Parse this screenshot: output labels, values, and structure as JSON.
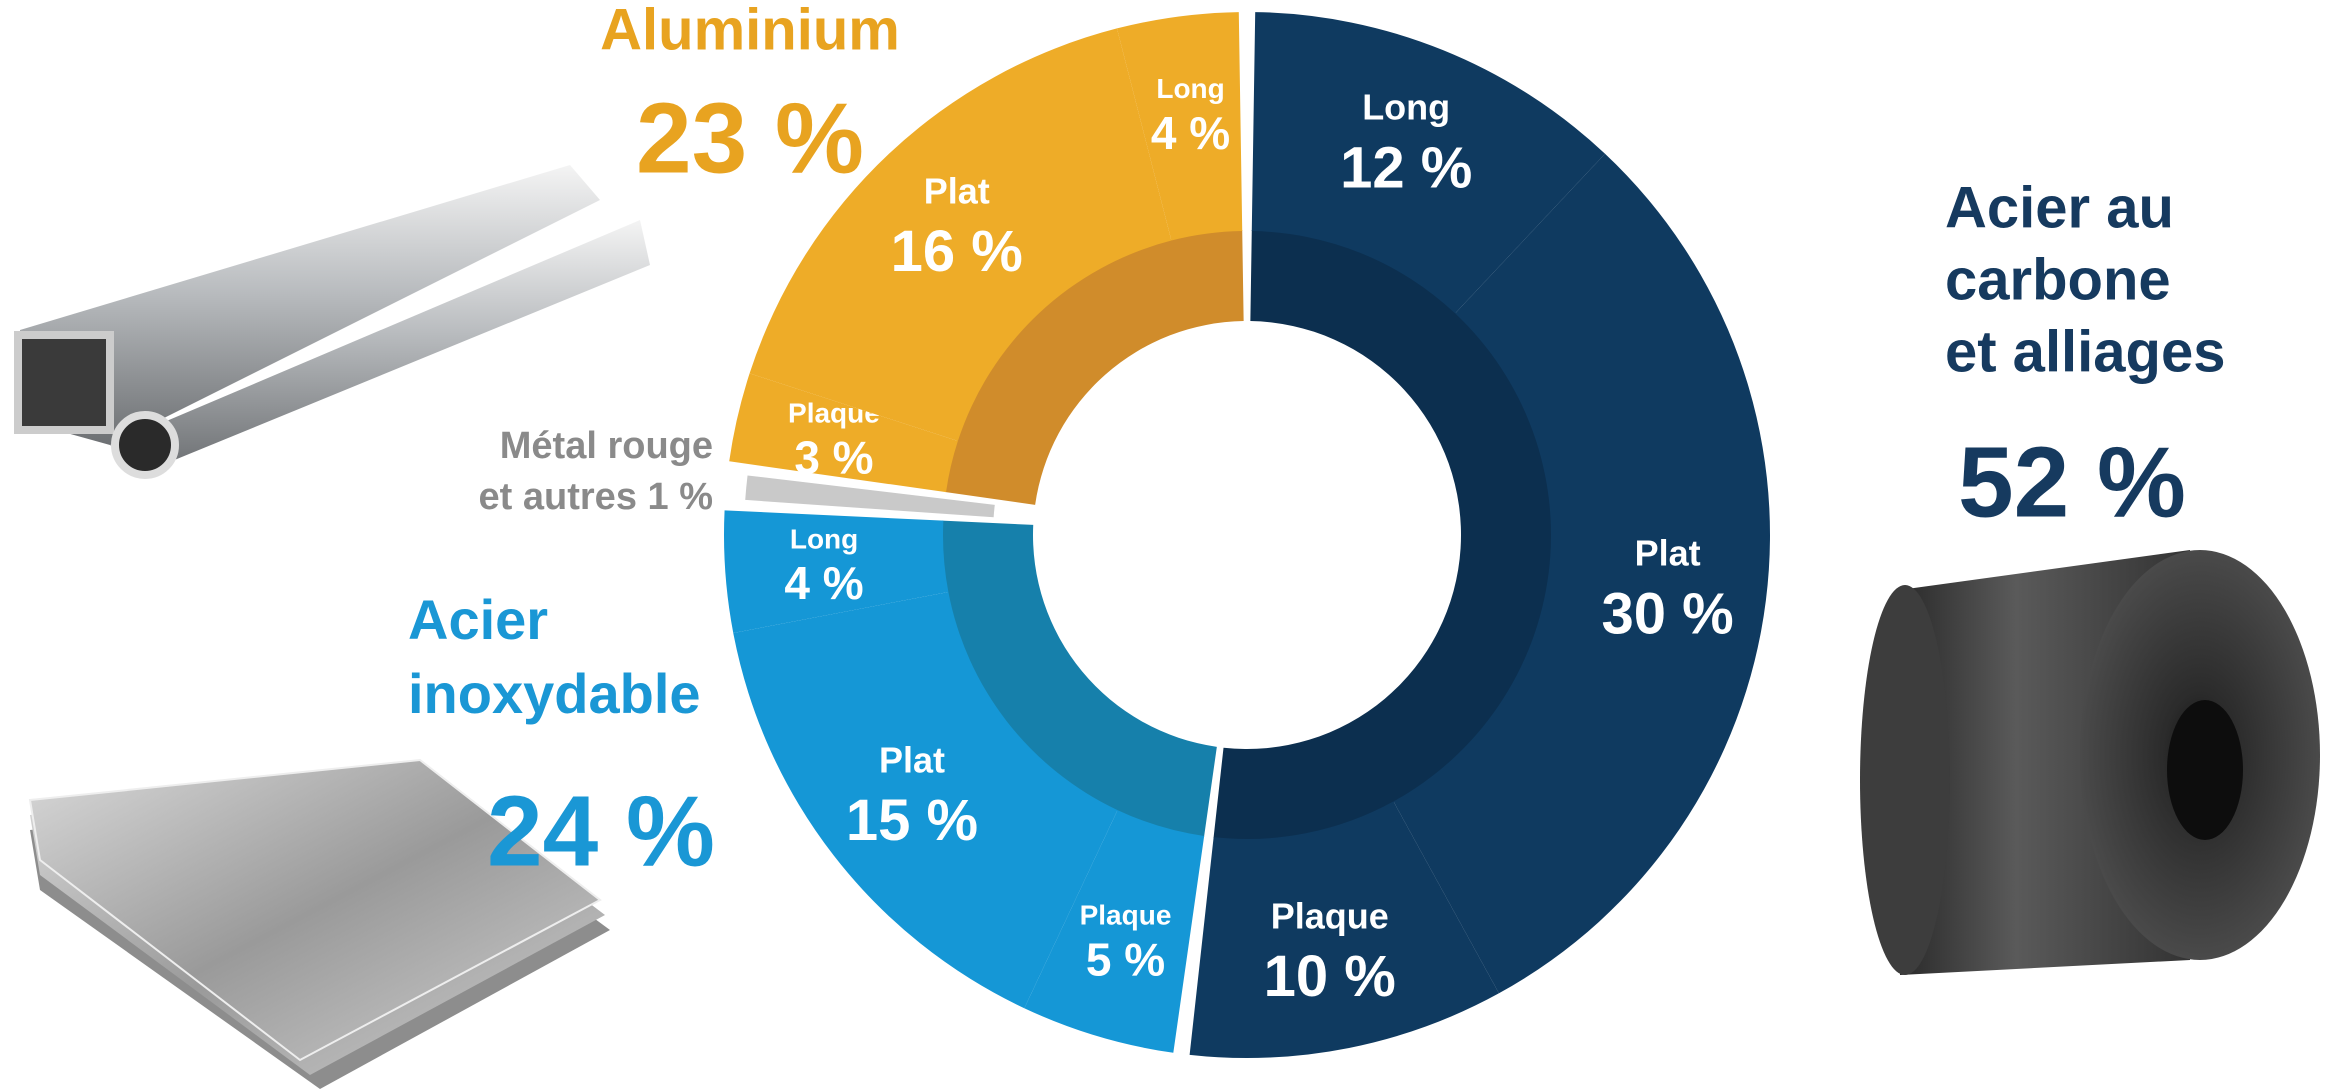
{
  "chart_data": {
    "type": "donut",
    "series": [
      {
        "name": [
          "Acier au",
          "carbone",
          "et alliages"
        ],
        "color": "#0f3a60",
        "inner_color": "#0c2f4f",
        "title_color": "#163a5f",
        "value": 52,
        "value_label": "52 %",
        "categories": [
          "Long",
          "Plat",
          "Plaque"
        ],
        "values": [
          12,
          30,
          10
        ],
        "value_labels": [
          "12 %",
          "30 %",
          "10 %"
        ]
      },
      {
        "name": [
          "Acier",
          "inoxydable"
        ],
        "color": "#1597d6",
        "inner_color": "#1680ab",
        "title_color": "#1a97d5",
        "value": 24,
        "value_label": "24 %",
        "categories": [
          "Plaque",
          "Plat",
          "Long"
        ],
        "values": [
          5,
          15,
          4
        ],
        "value_labels": [
          "5 %",
          "15 %",
          "4 %"
        ]
      },
      {
        "name": [
          "Métal rouge",
          "et autres"
        ],
        "color": "#c9c9c9",
        "inner_color": "#a8a8a8",
        "title_color": "#8a8a8a",
        "value": 1,
        "value_label": "1 %"
      },
      {
        "name": [
          "Aluminium"
        ],
        "color": "#eeac28",
        "inner_color": "#d08c2b",
        "title_color": "#e8a320",
        "value": 23,
        "value_label": "23 %",
        "categories": [
          "Plaque",
          "Plat",
          "Long"
        ],
        "values": [
          3,
          16,
          4
        ],
        "value_labels": [
          "3 %",
          "16 %",
          "4 %"
        ]
      }
    ]
  }
}
